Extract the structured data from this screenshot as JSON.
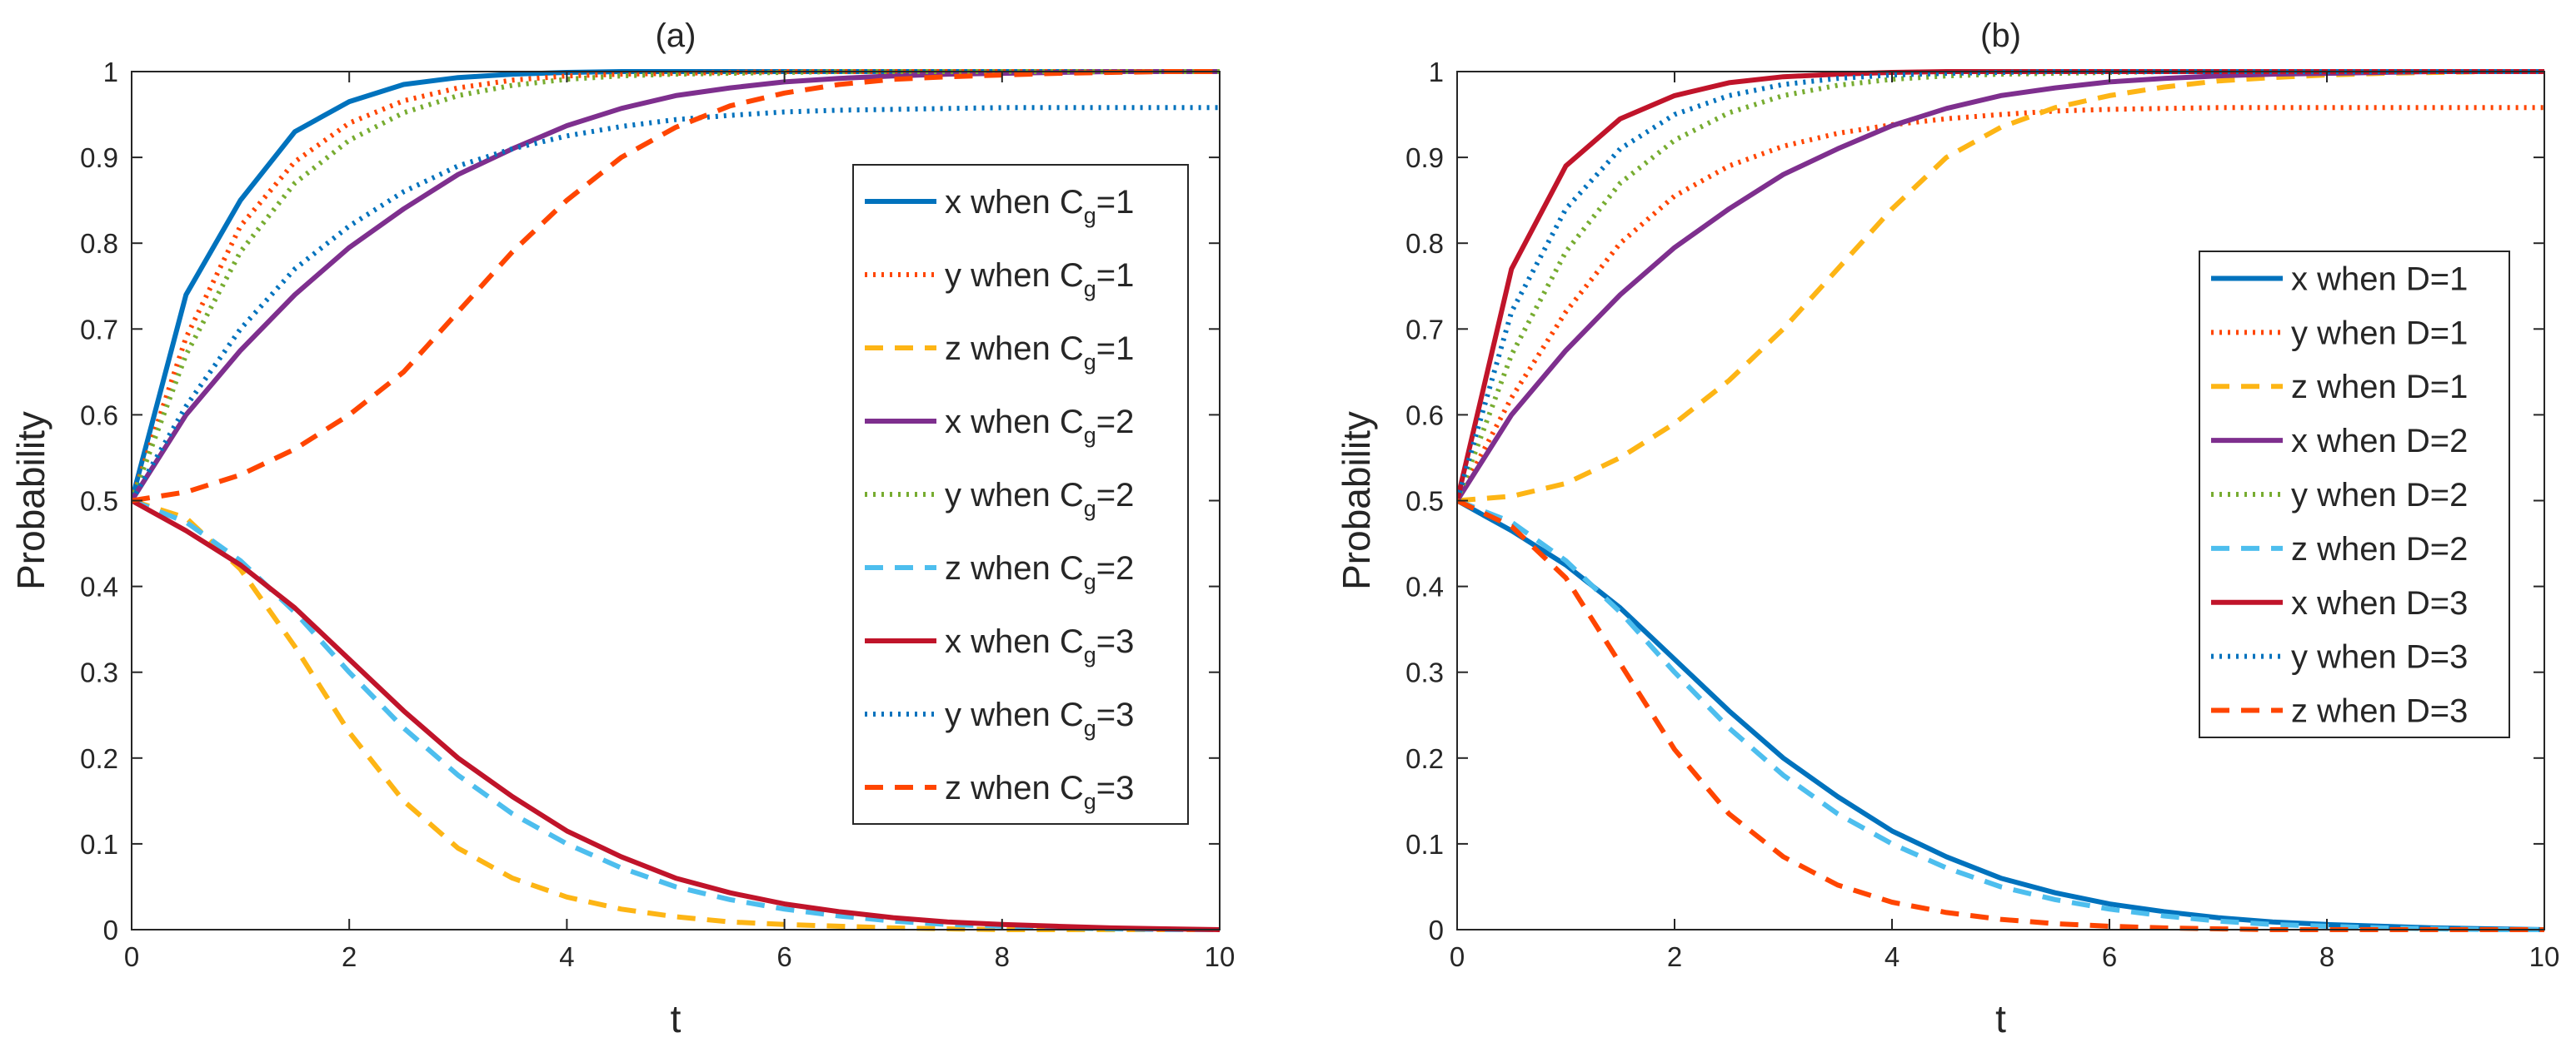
{
  "chart_data": [
    {
      "type": "line",
      "title": "(a)",
      "xlabel": "t",
      "ylabel": "Probability",
      "xlim": [
        0,
        10
      ],
      "ylim": [
        0,
        1
      ],
      "xticks": [
        "0",
        "2",
        "4",
        "6",
        "8",
        "10"
      ],
      "yticks": [
        "0",
        "0.1",
        "0.2",
        "0.3",
        "0.4",
        "0.5",
        "0.6",
        "0.7",
        "0.8",
        "0.9",
        "1"
      ],
      "legend_position": "right",
      "x": [
        0,
        0.5,
        1,
        1.5,
        2,
        2.5,
        3,
        3.5,
        4,
        4.5,
        5,
        5.5,
        6,
        6.5,
        7,
        7.5,
        8,
        8.5,
        9,
        9.5,
        10
      ],
      "series": [
        {
          "legend_pre": "x when C",
          "legend_sub": "g",
          "legend_post": "=1",
          "color": "#0072BD",
          "style": "solid",
          "values": [
            0.5,
            0.74,
            0.85,
            0.93,
            0.965,
            0.985,
            0.993,
            0.997,
            0.999,
            1,
            1,
            1,
            1,
            1,
            1,
            1,
            1,
            1,
            1,
            1,
            1
          ]
        },
        {
          "legend_pre": "y when C",
          "legend_sub": "g",
          "legend_post": "=1",
          "color": "#FF4500",
          "style": "dotted",
          "values": [
            0.5,
            0.69,
            0.82,
            0.895,
            0.94,
            0.966,
            0.981,
            0.99,
            0.995,
            0.997,
            0.998,
            0.999,
            1,
            1,
            1,
            1,
            1,
            1,
            1,
            1,
            1
          ]
        },
        {
          "legend_pre": "z when C",
          "legend_sub": "g",
          "legend_post": "=1",
          "color": "#FDB515",
          "style": "dashed",
          "values": [
            0.5,
            0.48,
            0.42,
            0.33,
            0.23,
            0.15,
            0.095,
            0.06,
            0.038,
            0.024,
            0.015,
            0.009,
            0.006,
            0.004,
            0.002,
            0.001,
            0,
            0,
            0,
            0,
            0
          ]
        },
        {
          "legend_pre": "x when C",
          "legend_sub": "g",
          "legend_post": "=2",
          "color": "#7E2F8E",
          "style": "solid",
          "values": [
            0.5,
            0.6,
            0.675,
            0.74,
            0.795,
            0.84,
            0.88,
            0.91,
            0.937,
            0.957,
            0.972,
            0.981,
            0.988,
            0.992,
            0.995,
            0.997,
            0.998,
            0.999,
            1,
            1,
            1
          ]
        },
        {
          "legend_pre": "y when C",
          "legend_sub": "g",
          "legend_post": "=2",
          "color": "#77AC30",
          "style": "dotted",
          "values": [
            0.5,
            0.67,
            0.79,
            0.87,
            0.92,
            0.952,
            0.972,
            0.984,
            0.991,
            0.995,
            0.997,
            0.998,
            0.999,
            1,
            1,
            1,
            1,
            1,
            1,
            1,
            1
          ]
        },
        {
          "legend_pre": "z when C",
          "legend_sub": "g",
          "legend_post": "=2",
          "color": "#4DBEEE",
          "style": "dashed",
          "values": [
            0.5,
            0.475,
            0.43,
            0.37,
            0.3,
            0.235,
            0.18,
            0.135,
            0.1,
            0.072,
            0.05,
            0.035,
            0.024,
            0.016,
            0.01,
            0.006,
            0.004,
            0.002,
            0.001,
            0,
            0
          ]
        },
        {
          "legend_pre": "x when C",
          "legend_sub": "g",
          "legend_post": "=3",
          "color": "#C0142A",
          "style": "solid",
          "values": [
            0.5,
            0.465,
            0.425,
            0.375,
            0.315,
            0.255,
            0.2,
            0.155,
            0.115,
            0.085,
            0.06,
            0.043,
            0.03,
            0.021,
            0.014,
            0.009,
            0.006,
            0.004,
            0.002,
            0.001,
            0
          ]
        },
        {
          "legend_pre": "y when C",
          "legend_sub": "g",
          "legend_post": "=3",
          "color": "#0072BD",
          "style": "dotted",
          "values": [
            0.5,
            0.61,
            0.7,
            0.77,
            0.82,
            0.86,
            0.89,
            0.91,
            0.925,
            0.936,
            0.944,
            0.949,
            0.953,
            0.955,
            0.956,
            0.957,
            0.958,
            0.958,
            0.958,
            0.958,
            0.958
          ]
        },
        {
          "legend_pre": "z when C",
          "legend_sub": "g",
          "legend_post": "=3",
          "color": "#FF4500",
          "style": "dashed",
          "values": [
            0.5,
            0.51,
            0.53,
            0.56,
            0.6,
            0.65,
            0.72,
            0.79,
            0.85,
            0.9,
            0.935,
            0.96,
            0.975,
            0.985,
            0.991,
            0.994,
            0.996,
            0.998,
            0.999,
            1,
            1
          ]
        }
      ]
    },
    {
      "type": "line",
      "title": "(b)",
      "xlabel": "t",
      "ylabel": "Probability",
      "xlim": [
        0,
        10
      ],
      "ylim": [
        0,
        1
      ],
      "xticks": [
        "0",
        "2",
        "4",
        "6",
        "8",
        "10"
      ],
      "yticks": [
        "0",
        "0.1",
        "0.2",
        "0.3",
        "0.4",
        "0.5",
        "0.6",
        "0.7",
        "0.8",
        "0.9",
        "1"
      ],
      "legend_position": "right",
      "x": [
        0,
        0.5,
        1,
        1.5,
        2,
        2.5,
        3,
        3.5,
        4,
        4.5,
        5,
        5.5,
        6,
        6.5,
        7,
        7.5,
        8,
        8.5,
        9,
        9.5,
        10
      ],
      "series": [
        {
          "legend_pre": "x when D=1",
          "legend_sub": "",
          "legend_post": "",
          "color": "#0072BD",
          "style": "solid",
          "values": [
            0.5,
            0.465,
            0.425,
            0.375,
            0.315,
            0.255,
            0.2,
            0.155,
            0.115,
            0.085,
            0.06,
            0.043,
            0.03,
            0.021,
            0.014,
            0.009,
            0.006,
            0.004,
            0.002,
            0.001,
            0
          ]
        },
        {
          "legend_pre": "y when D=1",
          "legend_sub": "",
          "legend_post": "",
          "color": "#FF4500",
          "style": "dotted",
          "values": [
            0.5,
            0.62,
            0.72,
            0.8,
            0.855,
            0.89,
            0.913,
            0.928,
            0.938,
            0.945,
            0.95,
            0.954,
            0.956,
            0.957,
            0.958,
            0.958,
            0.958,
            0.958,
            0.958,
            0.958,
            0.958
          ]
        },
        {
          "legend_pre": "z when D=1",
          "legend_sub": "",
          "legend_post": "",
          "color": "#FDB515",
          "style": "dashed",
          "values": [
            0.5,
            0.505,
            0.52,
            0.55,
            0.59,
            0.64,
            0.7,
            0.77,
            0.84,
            0.9,
            0.935,
            0.958,
            0.972,
            0.982,
            0.989,
            0.993,
            0.996,
            0.998,
            0.999,
            1,
            1
          ]
        },
        {
          "legend_pre": "x when D=2",
          "legend_sub": "",
          "legend_post": "",
          "color": "#7E2F8E",
          "style": "solid",
          "values": [
            0.5,
            0.6,
            0.675,
            0.74,
            0.795,
            0.84,
            0.88,
            0.91,
            0.937,
            0.957,
            0.972,
            0.981,
            0.988,
            0.992,
            0.995,
            0.997,
            0.998,
            0.999,
            1,
            1,
            1
          ]
        },
        {
          "legend_pre": "y when D=2",
          "legend_sub": "",
          "legend_post": "",
          "color": "#77AC30",
          "style": "dotted",
          "values": [
            0.5,
            0.67,
            0.79,
            0.87,
            0.92,
            0.952,
            0.972,
            0.984,
            0.991,
            0.995,
            0.997,
            0.998,
            0.999,
            1,
            1,
            1,
            1,
            1,
            1,
            1,
            1
          ]
        },
        {
          "legend_pre": "z when D=2",
          "legend_sub": "",
          "legend_post": "",
          "color": "#4DBEEE",
          "style": "dashed",
          "values": [
            0.5,
            0.475,
            0.43,
            0.37,
            0.3,
            0.235,
            0.18,
            0.135,
            0.1,
            0.072,
            0.05,
            0.035,
            0.024,
            0.016,
            0.01,
            0.006,
            0.004,
            0.002,
            0.001,
            0,
            0
          ]
        },
        {
          "legend_pre": "x when D=3",
          "legend_sub": "",
          "legend_post": "",
          "color": "#C0142A",
          "style": "solid",
          "values": [
            0.5,
            0.77,
            0.89,
            0.945,
            0.972,
            0.987,
            0.994,
            0.997,
            0.999,
            1,
            1,
            1,
            1,
            1,
            1,
            1,
            1,
            1,
            1,
            1,
            1
          ]
        },
        {
          "legend_pre": "y when D=3",
          "legend_sub": "",
          "legend_post": "",
          "color": "#0072BD",
          "style": "dotted",
          "values": [
            0.5,
            0.72,
            0.84,
            0.91,
            0.95,
            0.972,
            0.985,
            0.992,
            0.996,
            0.998,
            0.999,
            1,
            1,
            1,
            1,
            1,
            1,
            1,
            1,
            1,
            1
          ]
        },
        {
          "legend_pre": "z when D=3",
          "legend_sub": "",
          "legend_post": "",
          "color": "#FF4500",
          "style": "dashed",
          "values": [
            0.5,
            0.47,
            0.41,
            0.31,
            0.21,
            0.135,
            0.085,
            0.052,
            0.032,
            0.02,
            0.012,
            0.007,
            0.004,
            0.002,
            0.001,
            0,
            0,
            0,
            0,
            0,
            0
          ]
        }
      ]
    }
  ]
}
